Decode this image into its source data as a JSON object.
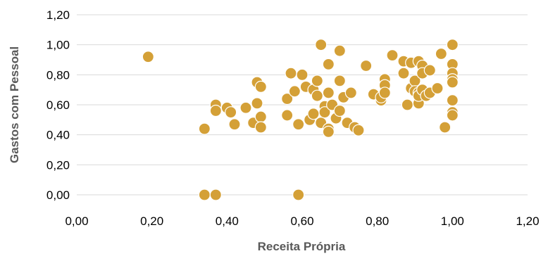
{
  "chart_data": {
    "type": "scatter",
    "xlabel": "Receita Própria",
    "ylabel": "Gastos com Pessoal",
    "xlim": [
      0,
      1.2
    ],
    "ylim": [
      0,
      1.2
    ],
    "x_ticks": [
      "0,00",
      "0,20",
      "0,40",
      "0,60",
      "0,80",
      "1,00",
      "1,20"
    ],
    "y_ticks": [
      "0,00",
      "0,20",
      "0,40",
      "0,60",
      "0,80",
      "1,00",
      "1,20"
    ],
    "grid": "horizontal",
    "legend": "none",
    "marker_color": "#D4A037",
    "points": [
      [
        0.19,
        0.92
      ],
      [
        0.34,
        0.44
      ],
      [
        0.34,
        0.0
      ],
      [
        0.37,
        0.0
      ],
      [
        0.59,
        0.0
      ],
      [
        0.37,
        0.6
      ],
      [
        0.37,
        0.56
      ],
      [
        0.4,
        0.58
      ],
      [
        0.41,
        0.55
      ],
      [
        0.42,
        0.47
      ],
      [
        0.45,
        0.58
      ],
      [
        0.47,
        0.48
      ],
      [
        0.48,
        0.75
      ],
      [
        0.48,
        0.61
      ],
      [
        0.49,
        0.72
      ],
      [
        0.49,
        0.52
      ],
      [
        0.49,
        0.45
      ],
      [
        0.56,
        0.64
      ],
      [
        0.56,
        0.53
      ],
      [
        0.57,
        0.81
      ],
      [
        0.58,
        0.69
      ],
      [
        0.59,
        0.47
      ],
      [
        0.6,
        0.8
      ],
      [
        0.61,
        0.72
      ],
      [
        0.62,
        0.5
      ],
      [
        0.63,
        0.54
      ],
      [
        0.63,
        0.7
      ],
      [
        0.64,
        0.76
      ],
      [
        0.64,
        0.66
      ],
      [
        0.65,
        1.0
      ],
      [
        0.65,
        0.48
      ],
      [
        0.66,
        0.59
      ],
      [
        0.66,
        0.55
      ],
      [
        0.67,
        0.87
      ],
      [
        0.67,
        0.68
      ],
      [
        0.67,
        0.44
      ],
      [
        0.67,
        0.42
      ],
      [
        0.68,
        0.6
      ],
      [
        0.69,
        0.51
      ],
      [
        0.7,
        0.96
      ],
      [
        0.7,
        0.76
      ],
      [
        0.7,
        0.56
      ],
      [
        0.71,
        0.65
      ],
      [
        0.72,
        0.48
      ],
      [
        0.73,
        0.68
      ],
      [
        0.74,
        0.45
      ],
      [
        0.75,
        0.43
      ],
      [
        0.77,
        0.86
      ],
      [
        0.79,
        0.67
      ],
      [
        0.81,
        0.63
      ],
      [
        0.81,
        0.65
      ],
      [
        0.82,
        0.77
      ],
      [
        0.82,
        0.73
      ],
      [
        0.82,
        0.68
      ],
      [
        0.84,
        0.93
      ],
      [
        0.87,
        0.89
      ],
      [
        0.87,
        0.81
      ],
      [
        0.88,
        0.6
      ],
      [
        0.89,
        0.88
      ],
      [
        0.89,
        0.71
      ],
      [
        0.9,
        0.76
      ],
      [
        0.9,
        0.69
      ],
      [
        0.91,
        0.89
      ],
      [
        0.91,
        0.68
      ],
      [
        0.91,
        0.61
      ],
      [
        0.91,
        0.66
      ],
      [
        0.92,
        0.86
      ],
      [
        0.92,
        0.81
      ],
      [
        0.92,
        0.7
      ],
      [
        0.93,
        0.66
      ],
      [
        0.94,
        0.83
      ],
      [
        0.94,
        0.68
      ],
      [
        0.96,
        0.71
      ],
      [
        0.97,
        0.94
      ],
      [
        0.98,
        0.45
      ],
      [
        1.0,
        1.0
      ],
      [
        1.0,
        0.87
      ],
      [
        1.0,
        0.81
      ],
      [
        1.0,
        0.77
      ],
      [
        1.0,
        0.75
      ],
      [
        1.0,
        0.63
      ],
      [
        1.0,
        0.55
      ],
      [
        1.0,
        0.53
      ]
    ]
  }
}
